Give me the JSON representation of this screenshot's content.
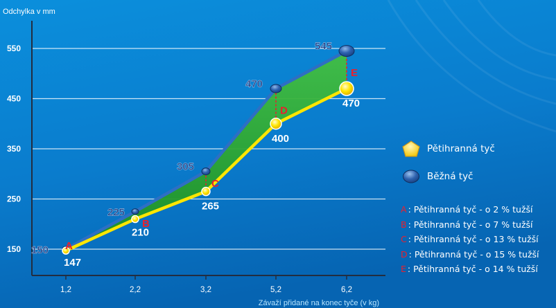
{
  "chart_data": {
    "type": "line",
    "ylabel": "Odchylka v mm",
    "xlabel": "Závaží přidané na konec tyče (v kg)",
    "categories": [
      "1,2",
      "2,2",
      "3,2",
      "5,2",
      "6,2"
    ],
    "y_ticks": [
      "150",
      "250",
      "350",
      "450",
      "550"
    ],
    "ylim": [
      120,
      600
    ],
    "grid": true,
    "legend_position": "right",
    "series": [
      {
        "name": "Pětihranná tyč",
        "values": [
          147,
          210,
          265,
          400,
          470
        ],
        "color": "#ffe600",
        "marker": "circle"
      },
      {
        "name": "Běžná tyč",
        "values": [
          150,
          225,
          305,
          470,
          545
        ],
        "color": "#2d6fc4",
        "marker": "ellipse"
      }
    ],
    "point_labels_upper": [
      "150",
      "225",
      "305",
      "470",
      "545"
    ],
    "point_labels_lower": [
      "147",
      "210",
      "265",
      "400",
      "470"
    ],
    "difference_markers": [
      "A",
      "B",
      "C",
      "D",
      "E"
    ],
    "annotations": [
      {
        "letter": "A",
        "text": ": Pětihranná tyč - o 2 % tužší"
      },
      {
        "letter": "B",
        "text": ": Pětihranná tyč - o 7 % tužší"
      },
      {
        "letter": "C",
        "text": ": Pětihranná tyč - o 13 % tužší"
      },
      {
        "letter": "D",
        "text": ": Pětihranná tyč - o 15 % tužší"
      },
      {
        "letter": "E",
        "text": ": Pětihranná tyč - o 14 % tužší"
      }
    ]
  }
}
